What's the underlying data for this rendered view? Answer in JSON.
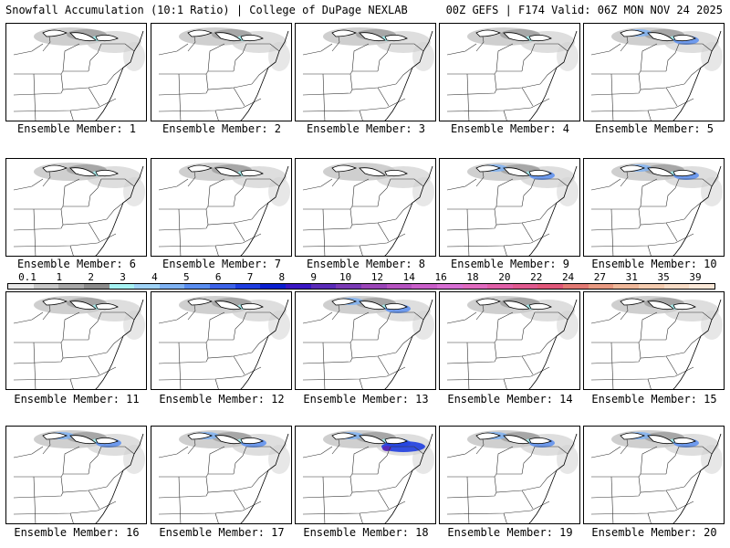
{
  "header": {
    "title": "Snowfall Accumulation (10:1 Ratio) | College of DuPage NEXLAB",
    "run": "00Z GEFS | F174 Valid: 06Z MON NOV 24 2025"
  },
  "colorbar": {
    "labels": [
      "0.1",
      "1",
      "2",
      "3",
      "4",
      "5",
      "6",
      "7",
      "8",
      "9",
      "10",
      "12",
      "14",
      "16",
      "18",
      "20",
      "22",
      "24",
      "27",
      "31",
      "35",
      "39"
    ],
    "colors": [
      "#e8e8e8",
      "#c8c8c8",
      "#a8a8a8",
      "#8c8c8c",
      "#a6f2f2",
      "#9fd3f7",
      "#7fb2f2",
      "#5a8ef0",
      "#3d63e8",
      "#1f3ee0",
      "#0a1fcf",
      "#3a17c4",
      "#5a2bb8",
      "#7a3ab5",
      "#9b46b8",
      "#b553c0",
      "#c95fc9",
      "#d76fd3",
      "#e06bbf",
      "#e060a8",
      "#e05a8f",
      "#e0587a",
      "#e27a74",
      "#e89a82",
      "#efb89a",
      "#f4ccb0",
      "#f8dcc6",
      "#fbe8d8"
    ]
  },
  "members": [
    {
      "label": "Ensemble Member: 1",
      "intensity": 1
    },
    {
      "label": "Ensemble Member: 2",
      "intensity": 1
    },
    {
      "label": "Ensemble Member: 3",
      "intensity": 1
    },
    {
      "label": "Ensemble Member: 4",
      "intensity": 1
    },
    {
      "label": "Ensemble Member: 5",
      "intensity": 2
    },
    {
      "label": "Ensemble Member: 6",
      "intensity": 1
    },
    {
      "label": "Ensemble Member: 7",
      "intensity": 1
    },
    {
      "label": "Ensemble Member: 8",
      "intensity": 0
    },
    {
      "label": "Ensemble Member: 9",
      "intensity": 2
    },
    {
      "label": "Ensemble Member: 10",
      "intensity": 2
    },
    {
      "label": "Ensemble Member: 11",
      "intensity": 1
    },
    {
      "label": "Ensemble Member: 12",
      "intensity": 1
    },
    {
      "label": "Ensemble Member: 13",
      "intensity": 2
    },
    {
      "label": "Ensemble Member: 14",
      "intensity": 1
    },
    {
      "label": "Ensemble Member: 15",
      "intensity": 1
    },
    {
      "label": "Ensemble Member: 16",
      "intensity": 2
    },
    {
      "label": "Ensemble Member: 17",
      "intensity": 2
    },
    {
      "label": "Ensemble Member: 18",
      "intensity": 3
    },
    {
      "label": "Ensemble Member: 19",
      "intensity": 2
    },
    {
      "label": "Ensemble Member: 20",
      "intensity": 2
    }
  ]
}
